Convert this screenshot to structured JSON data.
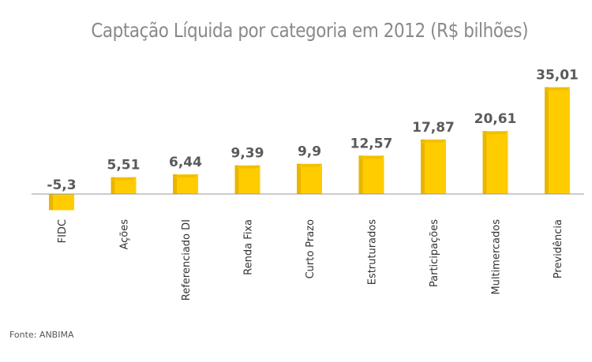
{
  "chart_data": {
    "type": "bar",
    "title": "Captação Líquida por categoria em 2012 (R$ bilhões)",
    "categories": [
      "FIDC",
      "Ações",
      "Referenciado DI",
      "Renda Fixa",
      "Curto Prazo",
      "Estruturados",
      "Participações",
      "Multimercados",
      "Previdência"
    ],
    "values": [
      -5.3,
      5.51,
      6.44,
      9.39,
      9.9,
      12.57,
      17.87,
      20.61,
      35.01
    ],
    "value_labels": [
      "-5,3",
      "5,51",
      "6,44",
      "9,39",
      "9,9",
      "12,57",
      "17,87",
      "20,61",
      "35,01"
    ],
    "xlabel": "",
    "ylabel": "",
    "grid": false,
    "bar_color": "#ffcc00",
    "bar_side_color": "#e8b500",
    "baseline_color": "#999999"
  },
  "source": "Fonte: ANBIMA"
}
